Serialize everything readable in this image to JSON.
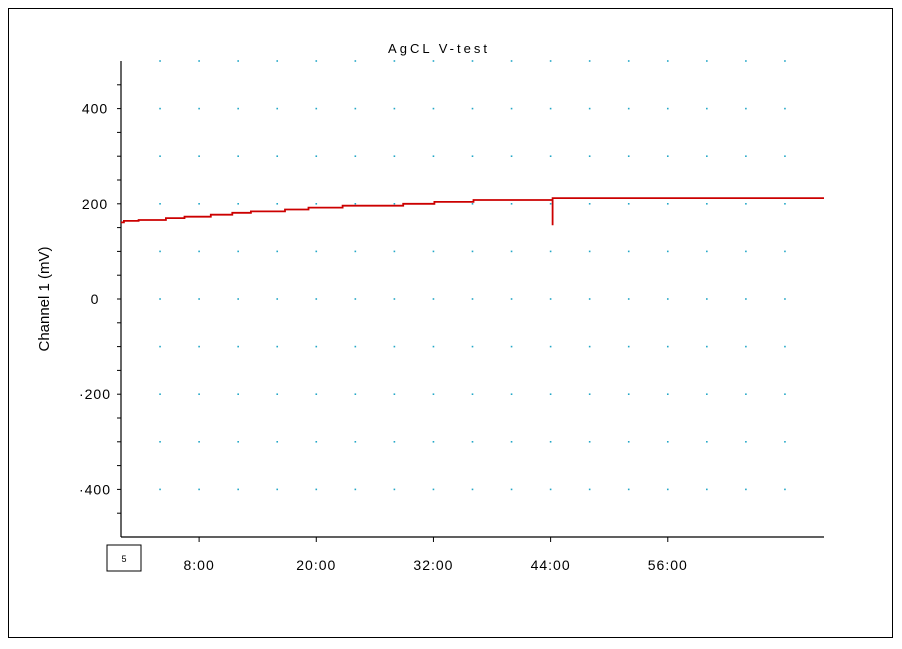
{
  "chart_data": {
    "type": "line",
    "title": "AgCL V-test",
    "xlabel": "",
    "ylabel": "Channel 1 (mV)",
    "xlim": [
      0,
      72
    ],
    "ylim": [
      -500,
      500
    ],
    "x_ticks": [
      8,
      20,
      32,
      44,
      56
    ],
    "x_tick_labels": [
      "8:00",
      "20:00",
      "32:00",
      "44:00",
      "56:00"
    ],
    "y_ticks": [
      400,
      200,
      0,
      -200,
      -400
    ],
    "y_tick_labels": [
      "400",
      "200",
      "0",
      "-200",
      "-400"
    ],
    "grid": "dotted",
    "start_marker_label": "5",
    "series": [
      {
        "color": "#cc0000",
        "step": true,
        "x": [
          0,
          0.3,
          1.8,
          4.6,
          6.5,
          9.2,
          11.4,
          13.3,
          16.8,
          19.2,
          22.7,
          28.9,
          32.1,
          36.1,
          44.2,
          44.2,
          44.2,
          72
        ],
        "y": [
          161,
          164,
          166,
          170,
          173,
          177,
          181,
          184,
          188,
          192,
          196,
          200,
          204,
          208,
          212,
          155,
          212,
          212
        ]
      }
    ]
  }
}
